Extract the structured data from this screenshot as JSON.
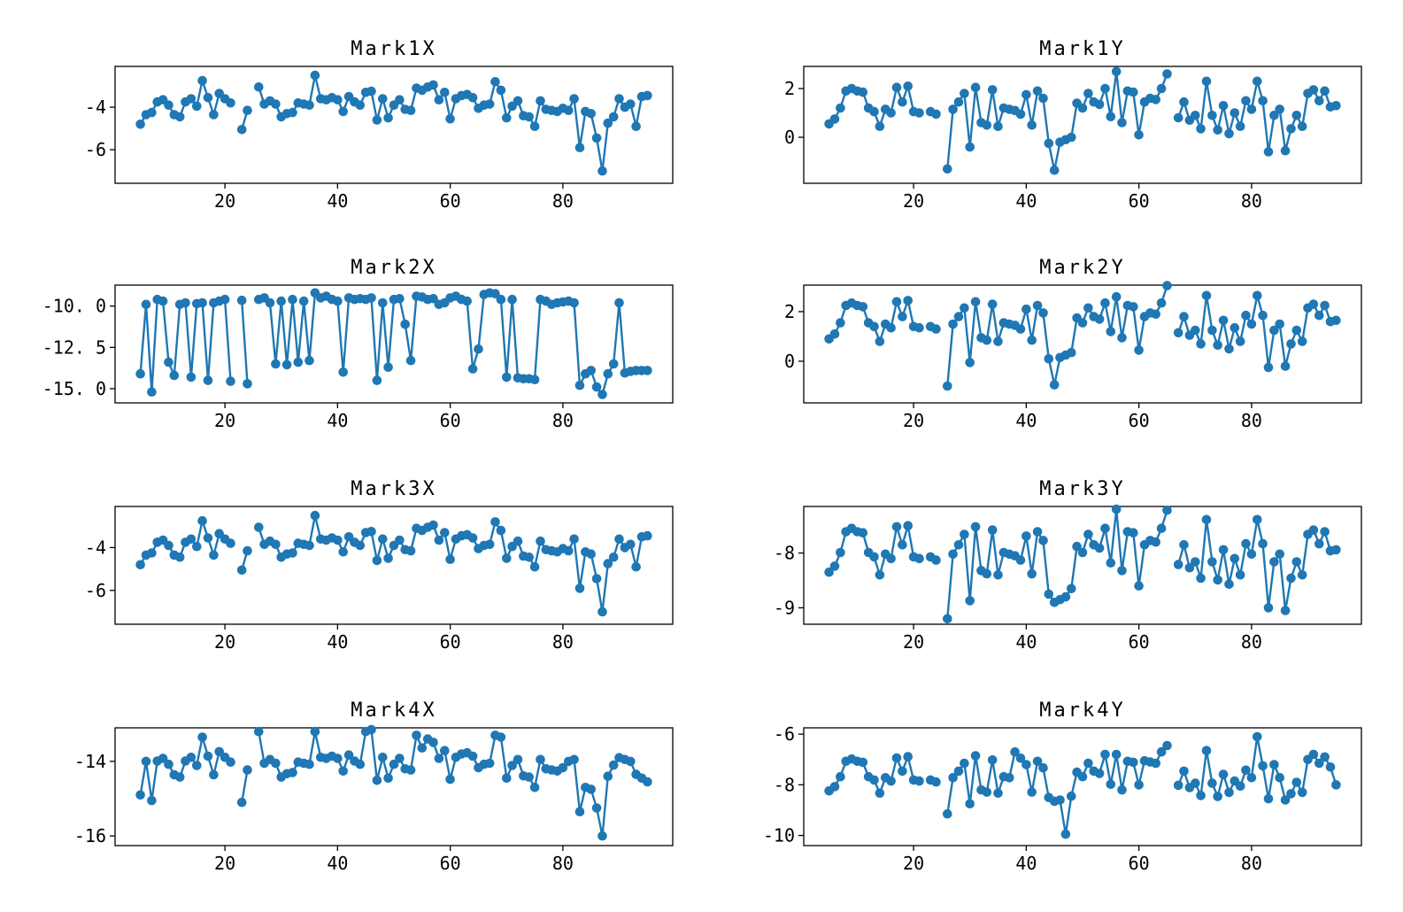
{
  "figure": {
    "background": "#ffffff",
    "series_color": "#1f77b4",
    "spine_color": "#000000",
    "text_color": "#000000"
  },
  "x_values": [
    5,
    6,
    7,
    8,
    9,
    10,
    11,
    12,
    13,
    14,
    15,
    16,
    17,
    18,
    19,
    20,
    21,
    22,
    23,
    24,
    25,
    26,
    27,
    28,
    29,
    30,
    31,
    32,
    33,
    34,
    35,
    36,
    37,
    38,
    39,
    40,
    41,
    42,
    43,
    44,
    45,
    46,
    47,
    48,
    49,
    50,
    51,
    52,
    53,
    54,
    55,
    56,
    57,
    58,
    59,
    60,
    61,
    62,
    63,
    64,
    65,
    66,
    67,
    68,
    69,
    70,
    71,
    72,
    73,
    74,
    75,
    76,
    77,
    78,
    79,
    80,
    81,
    82,
    83,
    84,
    85,
    86,
    87,
    88,
    89,
    90,
    91,
    92,
    93,
    94,
    95
  ],
  "chart_data": [
    {
      "type": "line",
      "title": "Mark1X",
      "xlabel": "",
      "ylabel": "",
      "xlim": [
        0.5,
        99.5
      ],
      "ylim": [
        -7.58,
        -2.08
      ],
      "x_ticks": [
        {
          "value": 20,
          "label": "20"
        },
        {
          "value": 40,
          "label": "40"
        },
        {
          "value": 60,
          "label": "60"
        },
        {
          "value": 80,
          "label": "80"
        }
      ],
      "y_ticks": [
        {
          "value": -4,
          "label": "-4"
        },
        {
          "value": -6,
          "label": "-6"
        }
      ],
      "values": [
        -4.8,
        -4.35,
        -4.25,
        -3.75,
        -3.65,
        -3.9,
        -4.35,
        -4.45,
        -3.75,
        -3.6,
        -3.95,
        -2.75,
        -3.55,
        -4.35,
        -3.35,
        -3.6,
        -3.8,
        null,
        -5.05,
        -4.15,
        null,
        -3.05,
        -3.85,
        -3.7,
        -3.85,
        -4.45,
        -4.3,
        -4.25,
        -3.8,
        -3.85,
        -3.9,
        -2.5,
        -3.6,
        -3.65,
        -3.55,
        -3.65,
        -4.2,
        -3.5,
        -3.75,
        -3.9,
        -3.3,
        -3.25,
        -4.6,
        -3.6,
        -4.5,
        -3.9,
        -3.65,
        -4.1,
        -4.15,
        -3.1,
        -3.2,
        -3.05,
        -2.95,
        -3.65,
        -3.3,
        -4.55,
        -3.6,
        -3.45,
        -3.4,
        -3.55,
        -4.05,
        -3.9,
        -3.85,
        -2.8,
        -3.2,
        -4.5,
        -3.95,
        -3.7,
        -4.4,
        -4.45,
        -4.9,
        -3.7,
        -4.1,
        -4.15,
        -4.2,
        -4.05,
        -4.15,
        -3.6,
        -5.9,
        -4.2,
        -4.3,
        -5.45,
        -7.0,
        -4.75,
        -4.45,
        -3.6,
        -4.0,
        -3.85,
        -4.9,
        -3.5,
        -3.45
      ]
    },
    {
      "type": "line",
      "title": "Mark1Y",
      "xlabel": "",
      "ylabel": "",
      "xlim": [
        0.5,
        99.5
      ],
      "ylim": [
        -1.89,
        2.91
      ],
      "x_ticks": [
        {
          "value": 20,
          "label": "20"
        },
        {
          "value": 40,
          "label": "40"
        },
        {
          "value": 60,
          "label": "60"
        },
        {
          "value": 80,
          "label": "80"
        }
      ],
      "y_ticks": [
        {
          "value": 2,
          "label": "2"
        },
        {
          "value": 0,
          "label": "0"
        }
      ],
      "values": [
        0.55,
        0.75,
        1.2,
        1.9,
        2.0,
        1.9,
        1.85,
        1.2,
        1.05,
        0.45,
        1.15,
        1.0,
        2.05,
        1.45,
        2.1,
        1.05,
        1.0,
        null,
        1.05,
        0.95,
        null,
        -1.3,
        1.15,
        1.45,
        1.8,
        -0.4,
        2.05,
        0.6,
        0.5,
        1.95,
        0.45,
        1.2,
        1.15,
        1.1,
        0.95,
        1.75,
        0.5,
        1.9,
        1.6,
        -0.25,
        -1.35,
        -0.2,
        -0.1,
        0.0,
        1.4,
        1.2,
        1.8,
        1.45,
        1.35,
        2.0,
        0.85,
        2.7,
        0.6,
        1.9,
        1.85,
        0.1,
        1.45,
        1.6,
        1.55,
        2.0,
        2.6,
        null,
        0.8,
        1.45,
        0.7,
        0.9,
        0.35,
        2.3,
        0.9,
        0.3,
        1.3,
        0.15,
        1.0,
        0.45,
        1.5,
        1.15,
        2.3,
        1.5,
        -0.6,
        0.9,
        1.15,
        -0.55,
        0.35,
        0.9,
        0.45,
        1.8,
        1.95,
        1.5,
        1.9,
        1.25,
        1.3
      ]
    },
    {
      "type": "line",
      "title": "Mark2X",
      "xlabel": "",
      "ylabel": "",
      "xlim": [
        0.5,
        99.5
      ],
      "ylim": [
        -15.86,
        -8.73
      ],
      "x_ticks": [
        {
          "value": 20,
          "label": "20"
        },
        {
          "value": 40,
          "label": "40"
        },
        {
          "value": 60,
          "label": "60"
        },
        {
          "value": 80,
          "label": "80"
        }
      ],
      "y_ticks": [
        {
          "value": -10,
          "label": "-10. 0"
        },
        {
          "value": -12.5,
          "label": "-12. 5"
        },
        {
          "value": -15,
          "label": "-15. 0"
        }
      ],
      "values": [
        -14.1,
        -9.9,
        -15.2,
        -9.6,
        -9.7,
        -13.4,
        -14.2,
        -9.9,
        -9.8,
        -14.3,
        -9.85,
        -9.8,
        -14.5,
        -9.8,
        -9.7,
        -9.6,
        -14.55,
        null,
        -9.65,
        -14.7,
        null,
        -9.6,
        -9.5,
        -9.8,
        -13.5,
        -9.7,
        -13.55,
        -9.6,
        -13.4,
        -9.7,
        -13.3,
        -9.2,
        -9.5,
        -9.4,
        -9.6,
        -9.7,
        -14.0,
        -9.5,
        -9.6,
        -9.55,
        -9.6,
        -9.5,
        -14.5,
        -9.8,
        -13.7,
        -9.6,
        -9.55,
        -11.1,
        -13.3,
        -9.4,
        -9.45,
        -9.6,
        -9.55,
        -9.9,
        -9.8,
        -9.5,
        -9.4,
        -9.6,
        -9.7,
        -13.8,
        -12.6,
        -9.3,
        -9.2,
        -9.25,
        -9.6,
        -14.3,
        -9.6,
        -14.35,
        -14.4,
        -14.4,
        -14.45,
        -9.6,
        -9.7,
        -9.9,
        -9.8,
        -9.75,
        -9.7,
        -9.8,
        -14.8,
        -14.1,
        -13.9,
        -14.9,
        -15.35,
        -14.1,
        -13.5,
        -9.8,
        -14.05,
        -13.95,
        -13.9,
        -13.9,
        -13.9
      ]
    },
    {
      "type": "line",
      "title": "Mark2Y",
      "xlabel": "",
      "ylabel": "",
      "xlim": [
        0.5,
        99.5
      ],
      "ylim": [
        -1.68,
        3.07
      ],
      "x_ticks": [
        {
          "value": 20,
          "label": "20"
        },
        {
          "value": 40,
          "label": "40"
        },
        {
          "value": 60,
          "label": "60"
        },
        {
          "value": 80,
          "label": "80"
        }
      ],
      "y_ticks": [
        {
          "value": 2,
          "label": "2"
        },
        {
          "value": 0,
          "label": "0"
        }
      ],
      "values": [
        0.9,
        1.1,
        1.55,
        2.25,
        2.35,
        2.25,
        2.2,
        1.55,
        1.4,
        0.8,
        1.5,
        1.35,
        2.4,
        1.8,
        2.45,
        1.4,
        1.35,
        null,
        1.4,
        1.3,
        null,
        -1.0,
        1.5,
        1.8,
        2.15,
        -0.05,
        2.4,
        0.95,
        0.85,
        2.3,
        0.8,
        1.55,
        1.5,
        1.45,
        1.3,
        2.1,
        0.85,
        2.25,
        1.95,
        0.1,
        -0.95,
        0.15,
        0.25,
        0.35,
        1.75,
        1.55,
        2.15,
        1.8,
        1.7,
        2.35,
        1.2,
        2.6,
        0.95,
        2.25,
        2.2,
        0.45,
        1.8,
        1.95,
        1.9,
        2.35,
        3.05,
        null,
        1.15,
        1.8,
        1.05,
        1.25,
        0.7,
        2.65,
        1.25,
        0.65,
        1.65,
        0.5,
        1.35,
        0.8,
        1.85,
        1.5,
        2.65,
        1.85,
        -0.25,
        1.25,
        1.5,
        -0.2,
        0.7,
        1.25,
        0.8,
        2.15,
        2.3,
        1.85,
        2.25,
        1.6,
        1.65
      ]
    },
    {
      "type": "line",
      "title": "Mark3X",
      "xlabel": "",
      "ylabel": "",
      "xlim": [
        0.5,
        99.5
      ],
      "ylim": [
        -7.58,
        -2.08
      ],
      "x_ticks": [
        {
          "value": 20,
          "label": "20"
        },
        {
          "value": 40,
          "label": "40"
        },
        {
          "value": 60,
          "label": "60"
        },
        {
          "value": 80,
          "label": "80"
        }
      ],
      "y_ticks": [
        {
          "value": -4,
          "label": "-4"
        },
        {
          "value": -6,
          "label": "-6"
        }
      ],
      "values": [
        -4.8,
        -4.35,
        -4.25,
        -3.75,
        -3.65,
        -3.9,
        -4.35,
        -4.45,
        -3.75,
        -3.6,
        -3.95,
        -2.75,
        -3.55,
        -4.35,
        -3.35,
        -3.6,
        -3.8,
        null,
        -5.05,
        -4.15,
        null,
        -3.05,
        -3.85,
        -3.7,
        -3.85,
        -4.45,
        -4.3,
        -4.25,
        -3.8,
        -3.85,
        -3.9,
        -2.5,
        -3.6,
        -3.65,
        -3.55,
        -3.65,
        -4.2,
        -3.5,
        -3.75,
        -3.9,
        -3.3,
        -3.25,
        -4.6,
        -3.6,
        -4.5,
        -3.9,
        -3.65,
        -4.1,
        -4.15,
        -3.1,
        -3.2,
        -3.05,
        -2.95,
        -3.65,
        -3.3,
        -4.55,
        -3.6,
        -3.45,
        -3.4,
        -3.55,
        -4.05,
        -3.9,
        -3.85,
        -2.8,
        -3.2,
        -4.5,
        -3.95,
        -3.7,
        -4.4,
        -4.45,
        -4.9,
        -3.7,
        -4.1,
        -4.15,
        -4.2,
        -4.05,
        -4.15,
        -3.6,
        -5.9,
        -4.2,
        -4.3,
        -5.45,
        -7.0,
        -4.75,
        -4.45,
        -3.6,
        -4.0,
        -3.85,
        -4.9,
        -3.5,
        -3.45
      ]
    },
    {
      "type": "line",
      "title": "Mark3Y",
      "xlabel": "",
      "ylabel": "",
      "xlim": [
        0.5,
        99.5
      ],
      "ylim": [
        -9.3,
        -7.15
      ],
      "x_ticks": [
        {
          "value": 20,
          "label": "20"
        },
        {
          "value": 40,
          "label": "40"
        },
        {
          "value": 60,
          "label": "60"
        },
        {
          "value": 80,
          "label": "80"
        }
      ],
      "y_ticks": [
        {
          "value": -8,
          "label": "-8"
        },
        {
          "value": -9,
          "label": "-9"
        }
      ],
      "values": [
        -8.35,
        -8.24,
        -7.99,
        -7.61,
        -7.55,
        -7.61,
        -7.63,
        -7.99,
        -8.07,
        -8.4,
        -8.02,
        -8.1,
        -7.52,
        -7.85,
        -7.5,
        -8.07,
        -8.1,
        null,
        -8.07,
        -8.13,
        null,
        -9.2,
        -8.02,
        -7.85,
        -7.66,
        -8.87,
        -7.52,
        -8.32,
        -8.38,
        -7.58,
        -8.4,
        -7.99,
        -8.02,
        -8.05,
        -8.13,
        -7.69,
        -8.38,
        -7.61,
        -7.77,
        -8.75,
        -8.9,
        -8.85,
        -8.8,
        -8.65,
        -7.88,
        -7.99,
        -7.66,
        -7.85,
        -7.91,
        -7.55,
        -8.18,
        -7.2,
        -8.32,
        -7.61,
        -7.63,
        -8.6,
        -7.85,
        -7.77,
        -7.8,
        -7.55,
        -7.22,
        null,
        -8.21,
        -7.85,
        -8.27,
        -8.16,
        -8.46,
        -7.39,
        -8.16,
        -8.49,
        -7.94,
        -8.57,
        -8.1,
        -8.4,
        -7.83,
        -8.02,
        -7.39,
        -7.83,
        -9.0,
        -8.16,
        -8.02,
        -9.05,
        -8.46,
        -8.16,
        -8.4,
        -7.66,
        -7.58,
        -7.83,
        -7.61,
        -7.96,
        -7.94
      ]
    },
    {
      "type": "line",
      "title": "Mark4X",
      "xlabel": "",
      "ylabel": "",
      "xlim": [
        0.5,
        99.5
      ],
      "ylim": [
        -16.26,
        -13.1
      ],
      "x_ticks": [
        {
          "value": 20,
          "label": "20"
        },
        {
          "value": 40,
          "label": "40"
        },
        {
          "value": 60,
          "label": "60"
        },
        {
          "value": 80,
          "label": "80"
        }
      ],
      "y_ticks": [
        {
          "value": -14,
          "label": "-14"
        },
        {
          "value": -16,
          "label": "-16"
        }
      ],
      "values": [
        -14.9,
        -14.0,
        -15.05,
        -13.99,
        -13.92,
        -14.08,
        -14.36,
        -14.42,
        -13.99,
        -13.89,
        -14.11,
        -13.35,
        -13.86,
        -14.36,
        -13.74,
        -13.89,
        -14.02,
        null,
        -15.1,
        -14.23,
        null,
        -13.2,
        -14.05,
        -13.95,
        -14.05,
        -14.42,
        -14.33,
        -14.3,
        -14.02,
        -14.05,
        -14.08,
        -13.2,
        -13.89,
        -13.92,
        -13.86,
        -13.92,
        -14.26,
        -13.83,
        -13.99,
        -14.08,
        -13.2,
        -13.15,
        -14.51,
        -13.89,
        -14.45,
        -14.08,
        -13.92,
        -14.2,
        -14.23,
        -13.3,
        -13.64,
        -13.4,
        -13.49,
        -13.92,
        -13.71,
        -14.48,
        -13.89,
        -13.8,
        -13.77,
        -13.86,
        -14.17,
        -14.08,
        -14.05,
        -13.3,
        -13.35,
        -14.45,
        -14.11,
        -13.95,
        -14.39,
        -14.42,
        -14.7,
        -13.95,
        -14.2,
        -14.23,
        -14.26,
        -14.17,
        -14.0,
        -13.95,
        -15.35,
        -14.7,
        -14.75,
        -15.25,
        -16.0,
        -14.4,
        -14.1,
        -13.9,
        -13.95,
        -14.0,
        -14.35,
        -14.45,
        -14.55
      ]
    },
    {
      "type": "line",
      "title": "Mark4Y",
      "xlabel": "",
      "ylabel": "",
      "xlim": [
        0.5,
        99.5
      ],
      "ylim": [
        -10.4,
        -5.75
      ],
      "x_ticks": [
        {
          "value": 20,
          "label": "20"
        },
        {
          "value": 40,
          "label": "40"
        },
        {
          "value": 60,
          "label": "60"
        },
        {
          "value": 80,
          "label": "80"
        }
      ],
      "y_ticks": [
        {
          "value": -6,
          "label": "-6"
        },
        {
          "value": -8,
          "label": "-8"
        },
        {
          "value": -10,
          "label": "-10"
        }
      ],
      "values": [
        -8.24,
        -8.07,
        -7.68,
        -7.07,
        -6.98,
        -7.07,
        -7.11,
        -7.68,
        -7.81,
        -8.33,
        -7.72,
        -7.85,
        -6.94,
        -7.46,
        -6.89,
        -7.81,
        -7.85,
        null,
        -7.81,
        -7.89,
        null,
        -9.15,
        -7.72,
        -7.46,
        -7.15,
        -8.75,
        -6.85,
        -8.2,
        -8.29,
        -7.02,
        -8.33,
        -7.68,
        -7.72,
        -6.7,
        -6.95,
        -7.2,
        -8.29,
        -7.07,
        -7.33,
        -8.5,
        -8.65,
        -8.6,
        -9.95,
        -8.45,
        -7.5,
        -7.68,
        -7.15,
        -7.46,
        -7.55,
        -6.8,
        -7.98,
        -6.8,
        -8.2,
        -7.07,
        -7.11,
        -8.0,
        -7.05,
        -7.1,
        -7.15,
        -6.7,
        -6.45,
        null,
        -8.02,
        -7.46,
        -8.11,
        -7.94,
        -8.42,
        -6.65,
        -7.94,
        -8.46,
        -7.59,
        -8.3,
        -7.85,
        -8.05,
        -7.42,
        -7.72,
        -6.1,
        -7.25,
        -8.55,
        -7.2,
        -7.72,
        -8.6,
        -8.35,
        -7.9,
        -8.3,
        -7.0,
        -6.8,
        -7.15,
        -6.9,
        -7.3,
        -8.0
      ]
    }
  ]
}
